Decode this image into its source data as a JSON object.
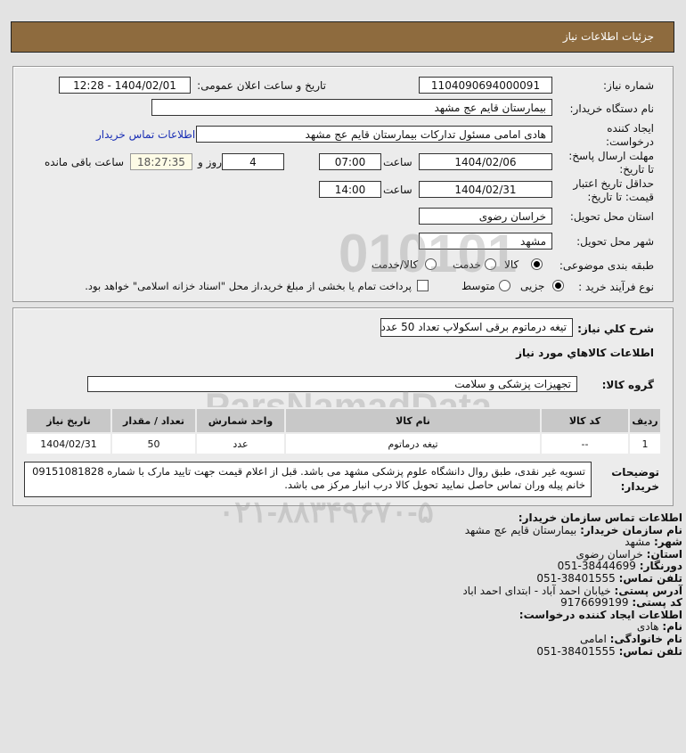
{
  "header": {
    "title": "جزئیات اطلاعات نیاز"
  },
  "form": {
    "need_number_label": "شماره نیاز:",
    "need_number": "1104090694000091",
    "announce_label": "تاریخ و ساعت اعلان عمومی:",
    "announce_value": "1404/02/01 - 12:28",
    "buyer_label": "نام دستگاه خریدار:",
    "buyer_value": "بیمارستان قایم  عج  مشهد",
    "creator_label": "ایجاد کننده درخواست:",
    "creator_value": "هادی امامی مسئول تدارکات بیمارستان قایم  عج  مشهد",
    "contact_link": "اطلاعات تماس خریدار",
    "deadline_label": "مهلت ارسال پاسخ: تا تاریخ:",
    "deadline_date": "1404/02/06",
    "time_label": "ساعت",
    "deadline_time": "07:00",
    "days": "4",
    "days_label": "روز و",
    "remaining": "18:27:35",
    "remaining_label": "ساعت باقی مانده",
    "validity_label": "حداقل تاریخ اعتبار قیمت: تا تاریخ:",
    "validity_date": "1404/02/31",
    "validity_time": "14:00",
    "province_label": "استان محل تحویل:",
    "province": "خراسان رضوی",
    "city_label": "شهر محل تحویل:",
    "city": "مشهد",
    "category_label": "طبقه بندی موضوعی:",
    "category_options": [
      "کالا",
      "خدمت",
      "کالا/خدمت"
    ],
    "category_selected": "کالا",
    "purchase_label": "نوع فرآیند خرید :",
    "purchase_options": [
      "جزیی",
      "متوسط"
    ],
    "purchase_selected": "جزیی",
    "payment_note": "پرداخت تمام یا بخشی از مبلغ خرید،از محل \"اسناد خزانه اسلامی\" خواهد بود."
  },
  "details": {
    "summary_label": "شرح کلي نياز:",
    "summary": "تیغه درماتوم برقی اسکولاپ تعداد 50 عدد",
    "goods_title": "اطلاعات کالاهاي مورد نياز",
    "group_label": "گروه کالا:",
    "group": "تجهیزات پزشکی و سلامت",
    "table": {
      "headers": [
        "ردیف",
        "کد کالا",
        "نام کالا",
        "واحد شمارش",
        "تعداد / مقدار",
        "تاریخ نیاز"
      ],
      "rows": [
        [
          "1",
          "--",
          "تیغه درماتوم",
          "عدد",
          "50",
          "1404/02/31"
        ]
      ]
    },
    "notes_label": "توضیحات خریدار:",
    "notes": "تسویه غیر نقدی، طبق روال دانشگاه علوم پزشکی مشهد می باشد. قبل از اعلام قیمت جهت تایید مارک با شماره 09151081828 خانم پیله وران تماس حاصل نمایید تحویل کالا درب انبار مرکز می باشد."
  },
  "contact": {
    "title": "اطلاعات تماس سازمان خریدار:",
    "org_label": "نام سازمان خریدار:",
    "org": "بیمارستان قایم عج مشهد",
    "city_label": "شهر:",
    "city": "مشهد",
    "province_label": "استان:",
    "province": "خراسان رضوی",
    "fax_label": "دورنگار:",
    "fax": "38444699-051",
    "phone_label": "تلفن تماس:",
    "phone": "38401555-051",
    "address_label": "آدرس پستی:",
    "address": "خیابان احمد آباد - ابتدای احمد اباد",
    "postal_label": "کد پستی:",
    "postal": "9176699199",
    "creator_title": "اطلاعات ایجاد کننده درخواست:",
    "name_label": "نام:",
    "name": "هادی",
    "family_label": "نام خانوادگی:",
    "family": "امامی",
    "cphone_label": "تلفن تماس:",
    "cphone": "38401555-051"
  },
  "watermark": {
    "text": "ParsNamadData",
    "phone": "۰۲۱-۸۸۳۴۹۶۷۰-۵"
  }
}
